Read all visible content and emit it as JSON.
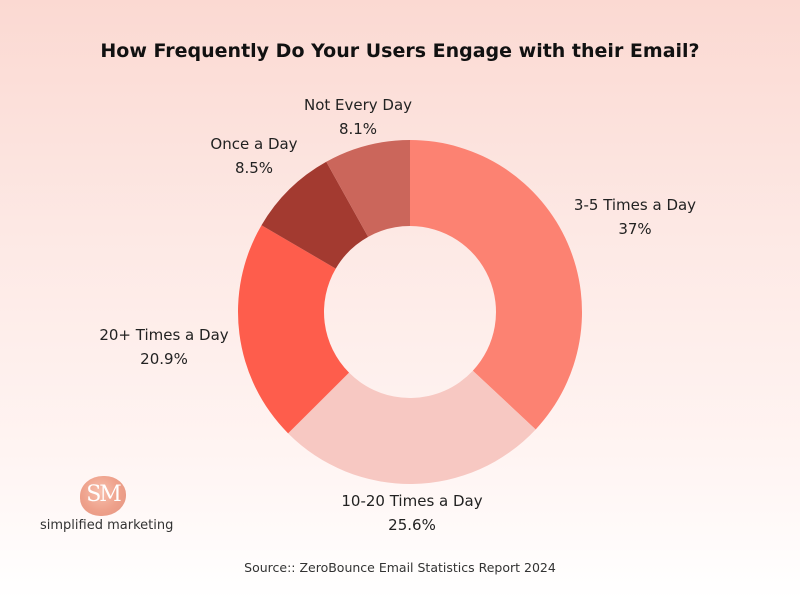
{
  "chart_data": {
    "type": "pie",
    "donut": true,
    "title": "How Frequently Do Your Users Engage with their Email?",
    "slices": [
      {
        "label": "3-5 Times a Day",
        "value": 37,
        "value_label": "37%",
        "color": "#fc8272"
      },
      {
        "label": "10-20 Times a Day",
        "value": 25.6,
        "value_label": "25.6%",
        "color": "#f7c8c2"
      },
      {
        "label": "20+ Times a Day",
        "value": 20.9,
        "value_label": "20.9%",
        "color": "#fe5d4c"
      },
      {
        "label": "Once a Day",
        "value": 8.5,
        "value_label": "8.5%",
        "color": "#a33a30"
      },
      {
        "label": "Not Every Day",
        "value": 8.1,
        "value_label": "8.1%",
        "color": "#cb665b"
      }
    ]
  },
  "logo": {
    "monogram": "SM",
    "name": "simplified marketing"
  },
  "source": "Source:: ZeroBounce Email Statistics Report 2024"
}
